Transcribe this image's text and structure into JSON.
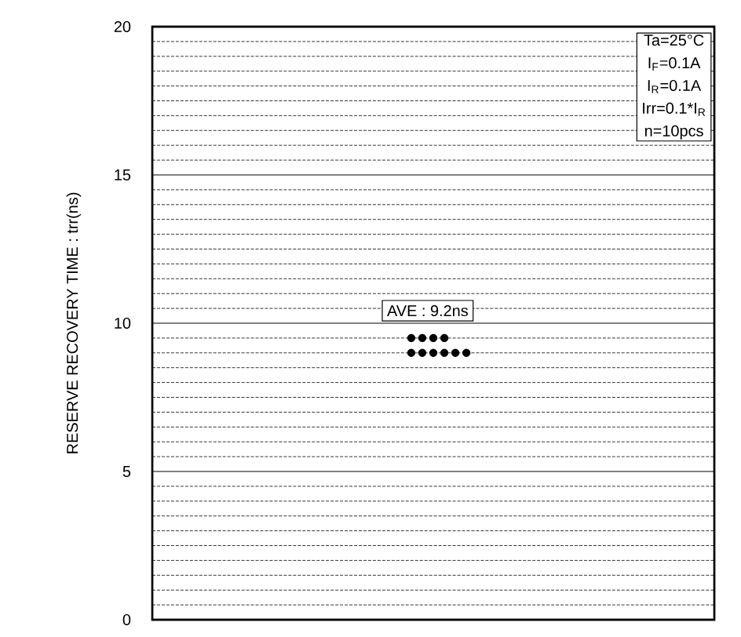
{
  "chart_data": {
    "type": "scatter",
    "ylabel": "RESERVE RECOVERY TIME : trr(ns)",
    "annotations": [
      "AVE : 9.2ns",
      "Ta=25°C",
      "I$_{F}$=0.1A",
      "I$_{R}$=0.1A",
      "Irr=0.1*I$_{R}$",
      "n=10pcs"
    ],
    "categories": [
      null,
      null,
      null,
      null,
      null,
      null,
      null,
      null,
      null,
      null,
      null,
      null,
      null,
      null,
      null,
      null,
      null,
      null,
      null,
      null,
      null,
      null,
      null,
      null,
      null,
      null,
      null,
      null,
      null,
      null,
      null,
      null,
      null,
      null,
      null,
      null,
      null,
      null,
      null,
      null,
      null,
      null,
      null,
      null,
      null,
      null,
      null,
      null,
      null,
      null,
      null
    ],
    "series": [
      {
        "color": "#000000",
        "values": [
          null,
          null,
          null,
          null,
          null,
          null,
          null,
          null,
          null,
          null,
          null,
          null,
          null,
          null,
          null,
          null,
          null,
          null,
          null,
          null,
          null,
          null,
          null,
          9.0,
          9.0,
          9.0,
          9.0,
          9.0,
          9.0,
          null,
          null,
          null,
          null,
          null,
          null,
          null,
          null,
          null,
          null,
          null,
          null,
          null,
          null,
          null,
          null,
          null,
          null,
          null,
          null,
          null,
          null
        ]
      },
      {
        "color": "#000000",
        "values": [
          null,
          null,
          null,
          null,
          null,
          null,
          null,
          null,
          null,
          null,
          null,
          null,
          null,
          null,
          null,
          null,
          null,
          null,
          null,
          null,
          null,
          null,
          null,
          9.5,
          9.5,
          9.5,
          9.5,
          null,
          null,
          null,
          null,
          null,
          null,
          null,
          null,
          null,
          null,
          null,
          null,
          null,
          null,
          null,
          null,
          null,
          null,
          null,
          null,
          null,
          null,
          null,
          null
        ]
      }
    ],
    "ylim": [
      0,
      20
    ],
    "yticks": [
      0,
      5,
      10,
      15,
      20
    ],
    "grid": "y",
    "tick_labels": "y",
    "marker": "circle"
  }
}
